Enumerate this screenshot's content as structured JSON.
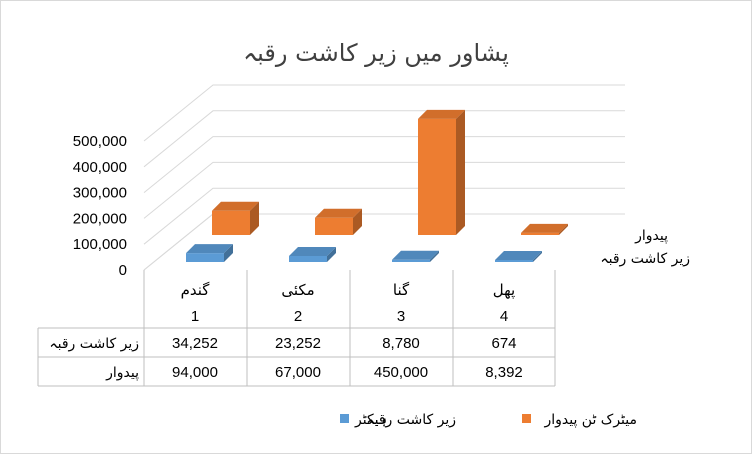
{
  "chart_data": {
    "type": "bar",
    "title": "پشاور میں زیر کاشت رقبہ",
    "categories": [
      "گندم",
      "مکئی",
      "گنا",
      "پھل"
    ],
    "category_index": [
      "1",
      "2",
      "3",
      "4"
    ],
    "series": [
      {
        "name": "زیر کاشت رقبہ",
        "unit": "ہیکٹر",
        "color": "#5b9bd5",
        "values": [
          34252,
          23252,
          8780,
          674
        ],
        "labels": [
          "34,252",
          "23,252",
          "8,780",
          "674"
        ]
      },
      {
        "name": "پیدوار",
        "unit": "میٹرک ٹن",
        "color": "#ed7d31",
        "values": [
          94000,
          67000,
          450000,
          8392
        ],
        "labels": [
          "94,000",
          "67,000",
          "450,000",
          "8,392"
        ]
      }
    ],
    "ylim": [
      0,
      500000
    ],
    "yticks": [
      "0",
      "100,000",
      "200,000",
      "300,000",
      "400,000",
      "500,000"
    ],
    "grid": true,
    "legend": {
      "position": "bottom",
      "entries": [
        {
          "series": 0,
          "prefix": "ہیکٹر",
          "text": "زیر کاشت رقبہ"
        },
        {
          "series": 1,
          "prefix": "",
          "text": "میٹرک ٹن پیدوار"
        }
      ]
    },
    "depth_axis_labels": [
      "پیدوار",
      "زیر کاشت رقبہ"
    ],
    "table": {
      "row_labels": [
        "زیر کاشت رقبہ",
        "پیدوار"
      ]
    }
  }
}
